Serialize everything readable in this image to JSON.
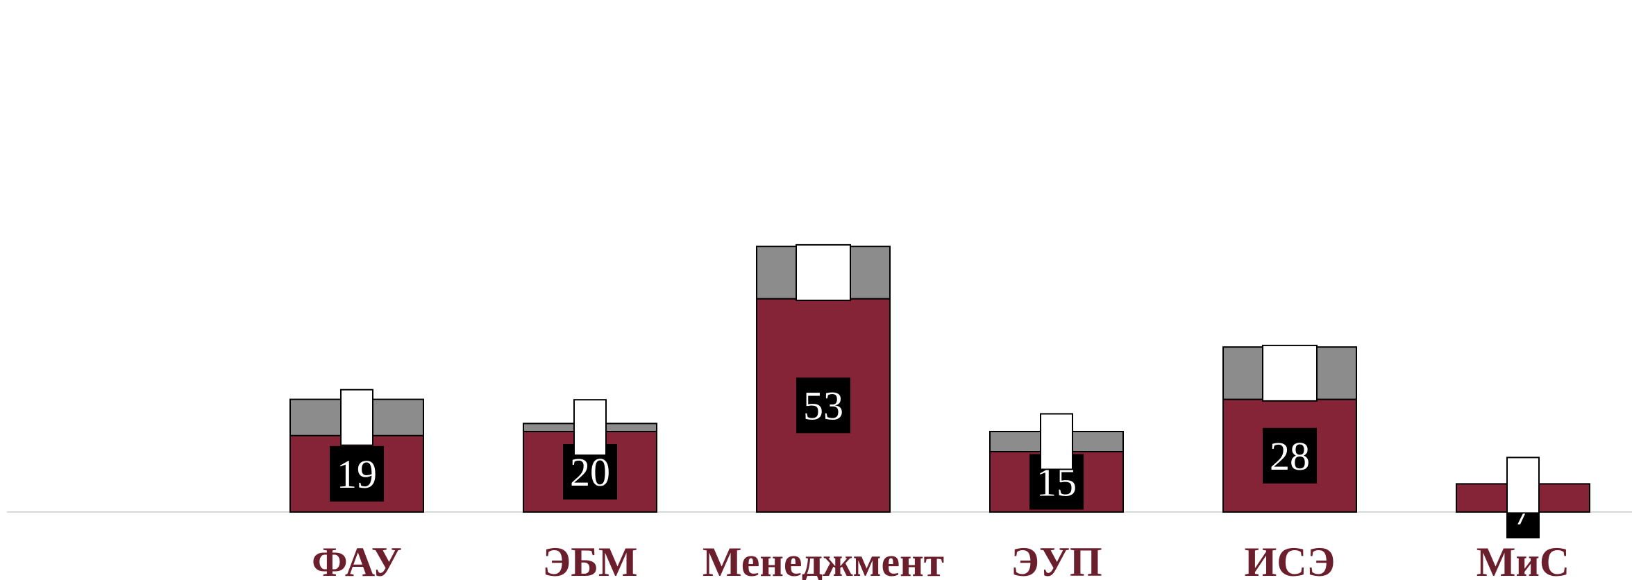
{
  "chart_data": {
    "type": "bar",
    "stacked": true,
    "categories": [
      "ФАУ",
      "ЭБМ",
      "Менеджмент",
      "ЭУП",
      "ИСЭ",
      "МиС"
    ],
    "series": [
      {
        "values": [
          19,
          20,
          53,
          15,
          28,
          7
        ],
        "color": "#842436",
        "labels": [
          "19",
          "20",
          "53",
          "15",
          "28",
          "7"
        ]
      },
      {
        "values": [
          9,
          2,
          13,
          5,
          13,
          0
        ],
        "color": "#8c8c8c",
        "labels": [
          "",
          "",
          "",
          "",
          "",
          ""
        ]
      }
    ],
    "ylim": [
      0,
      66
    ],
    "grid": false,
    "legend": "none",
    "category_label_color": "#6b1f2c",
    "value_label_background": "#000000"
  }
}
